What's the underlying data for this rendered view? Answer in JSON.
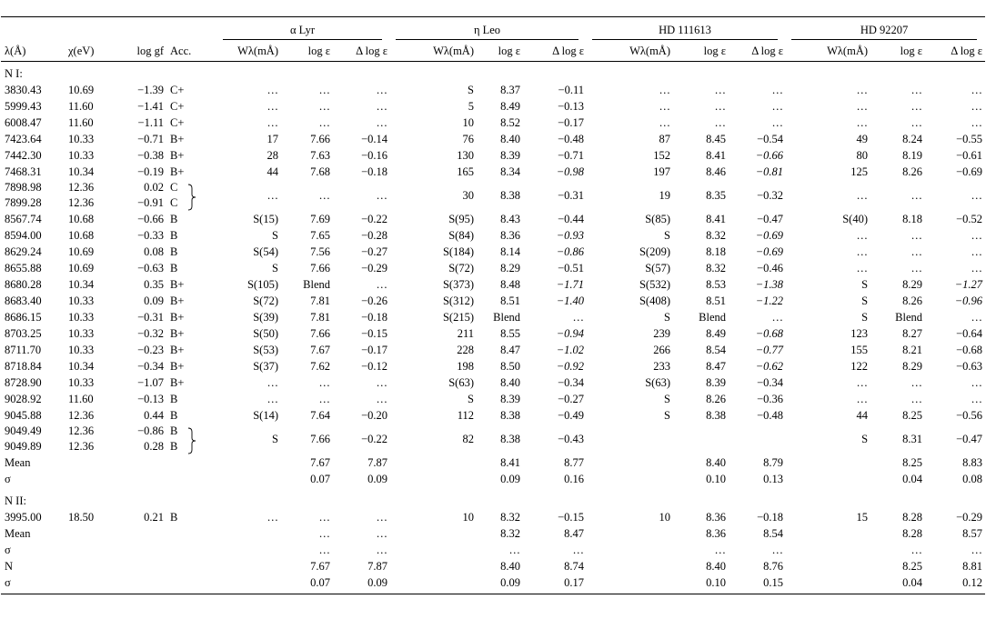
{
  "table": {
    "groups": [
      "α Lyr",
      "η Leo",
      "HD 111613",
      "HD 92207"
    ],
    "columns": [
      "λ(Å)",
      "χ(eV)",
      "log gf",
      "Acc.",
      "Wλ(mÅ)",
      "log ε",
      "Δ log ε",
      "Wλ(mÅ)",
      "log ε",
      "Δ log ε",
      "Wλ(mÅ)",
      "log ε",
      "Δ log ε",
      "Wλ(mÅ)",
      "log ε",
      "Δ log ε"
    ],
    "rows": [
      {
        "section": "N I:"
      },
      {
        "cells": [
          "3830.43",
          "10.69",
          "−1.39",
          "C+",
          "…",
          "…",
          "…",
          "S",
          "8.37",
          "−0.11",
          "…",
          "…",
          "…",
          "…",
          "…",
          "…"
        ]
      },
      {
        "cells": [
          "5999.43",
          "11.60",
          "−1.41",
          "C+",
          "…",
          "…",
          "…",
          "5",
          "8.49",
          "−0.13",
          "…",
          "…",
          "…",
          "…",
          "…",
          "…"
        ]
      },
      {
        "cells": [
          "6008.47",
          "11.60",
          "−1.11",
          "C+",
          "…",
          "…",
          "…",
          "10",
          "8.52",
          "−0.17",
          "…",
          "…",
          "…",
          "…",
          "…",
          "…"
        ]
      },
      {
        "cells": [
          "7423.64",
          "10.33",
          "−0.71",
          "B+",
          "17",
          "7.66",
          "−0.14",
          "76",
          "8.40",
          "−0.48",
          "87",
          "8.45",
          "−0.54",
          "49",
          "8.24",
          "−0.55"
        ]
      },
      {
        "cells": [
          "7442.30",
          "10.33",
          "−0.38",
          "B+",
          "28",
          "7.63",
          "−0.16",
          "130",
          "8.39",
          "−0.71",
          "152",
          "8.41",
          {
            "text": "−0.66",
            "italic": true
          },
          "80",
          "8.19",
          "−0.61"
        ]
      },
      {
        "cells": [
          "7468.31",
          "10.34",
          "−0.19",
          "B+",
          "44",
          "7.68",
          "−0.18",
          "165",
          "8.34",
          {
            "text": "−0.98",
            "italic": true
          },
          "197",
          "8.46",
          {
            "text": "−0.81",
            "italic": true
          },
          "125",
          "8.26",
          "−0.69"
        ]
      },
      {
        "cells": [
          [
            "7898.98",
            "7899.28"
          ],
          [
            "12.36",
            "12.36"
          ],
          [
            "0.02",
            "−0.91"
          ],
          [
            "C",
            "C"
          ],
          "…",
          "…",
          "…",
          "30",
          "8.38",
          "−0.31",
          "19",
          "8.35",
          "−0.32",
          "…",
          "…",
          "…"
        ]
      },
      {
        "cells": [
          "8567.74",
          "10.68",
          "−0.66",
          "B",
          "S(15)",
          "7.69",
          "−0.22",
          "S(95)",
          "8.43",
          "−0.44",
          "S(85)",
          "8.41",
          "−0.47",
          "S(40)",
          "8.18",
          "−0.52"
        ]
      },
      {
        "cells": [
          "8594.00",
          "10.68",
          "−0.33",
          "B",
          "S",
          "7.65",
          "−0.28",
          "S(84)",
          "8.36",
          {
            "text": "−0.93",
            "italic": true
          },
          "S",
          "8.32",
          {
            "text": "−0.69",
            "italic": true
          },
          "…",
          "…",
          "…"
        ]
      },
      {
        "cells": [
          "8629.24",
          "10.69",
          "0.08",
          "B",
          "S(54)",
          "7.56",
          "−0.27",
          "S(184)",
          "8.14",
          {
            "text": "−0.86",
            "italic": true
          },
          "S(209)",
          "8.18",
          {
            "text": "−0.69",
            "italic": true
          },
          "…",
          "…",
          "…"
        ]
      },
      {
        "cells": [
          "8655.88",
          "10.69",
          "−0.63",
          "B",
          "S",
          "7.66",
          "−0.29",
          "S(72)",
          "8.29",
          "−0.51",
          "S(57)",
          "8.32",
          "−0.46",
          "…",
          "…",
          "…"
        ]
      },
      {
        "cells": [
          "8680.28",
          "10.34",
          "0.35",
          "B+",
          "S(105)",
          "Blend",
          "…",
          "S(373)",
          "8.48",
          {
            "text": "−1.71",
            "italic": true
          },
          "S(532)",
          "8.53",
          {
            "text": "−1.38",
            "italic": true
          },
          "S",
          "8.29",
          {
            "text": "−1.27",
            "italic": true
          }
        ]
      },
      {
        "cells": [
          "8683.40",
          "10.33",
          "0.09",
          "B+",
          "S(72)",
          "7.81",
          "−0.26",
          "S(312)",
          "8.51",
          {
            "text": "−1.40",
            "italic": true
          },
          "S(408)",
          "8.51",
          {
            "text": "−1.22",
            "italic": true
          },
          "S",
          "8.26",
          {
            "text": "−0.96",
            "italic": true
          }
        ]
      },
      {
        "cells": [
          "8686.15",
          "10.33",
          "−0.31",
          "B+",
          "S(39)",
          "7.81",
          "−0.18",
          "S(215)",
          "Blend",
          "…",
          "S",
          "Blend",
          "…",
          "S",
          "Blend",
          "…"
        ]
      },
      {
        "cells": [
          "8703.25",
          "10.33",
          "−0.32",
          "B+",
          "S(50)",
          "7.66",
          "−0.15",
          "211",
          "8.55",
          {
            "text": "−0.94",
            "italic": true
          },
          "239",
          "8.49",
          {
            "text": "−0.68",
            "italic": true
          },
          "123",
          "8.27",
          "−0.64"
        ]
      },
      {
        "cells": [
          "8711.70",
          "10.33",
          "−0.23",
          "B+",
          "S(53)",
          "7.67",
          "−0.17",
          "228",
          "8.47",
          {
            "text": "−1.02",
            "italic": true
          },
          "266",
          "8.54",
          {
            "text": "−0.77",
            "italic": true
          },
          "155",
          "8.21",
          "−0.68"
        ]
      },
      {
        "cells": [
          "8718.84",
          "10.34",
          "−0.34",
          "B+",
          "S(37)",
          "7.62",
          "−0.12",
          "198",
          "8.50",
          {
            "text": "−0.92",
            "italic": true
          },
          "233",
          "8.47",
          {
            "text": "−0.62",
            "italic": true
          },
          "122",
          "8.29",
          "−0.63"
        ]
      },
      {
        "cells": [
          "8728.90",
          "10.33",
          "−1.07",
          "B+",
          "…",
          "…",
          "…",
          "S(63)",
          "8.40",
          "−0.34",
          "S(63)",
          "8.39",
          "−0.34",
          "…",
          "…",
          "…"
        ]
      },
      {
        "cells": [
          "9028.92",
          "11.60",
          "−0.13",
          "B",
          "…",
          "…",
          "…",
          "S",
          "8.39",
          "−0.27",
          "S",
          "8.26",
          "−0.36",
          "…",
          "…",
          "…"
        ]
      },
      {
        "cells": [
          "9045.88",
          "12.36",
          "0.44",
          "B",
          "S(14)",
          "7.64",
          "−0.20",
          "112",
          "8.38",
          "−0.49",
          "S",
          "8.38",
          "−0.48",
          "44",
          "8.25",
          "−0.56"
        ]
      },
      {
        "cells": [
          [
            "9049.49",
            "9049.89"
          ],
          [
            "12.36",
            "12.36"
          ],
          [
            "−0.86",
            "0.28"
          ],
          [
            "B",
            "B"
          ],
          "S",
          "7.66",
          "−0.22",
          "82",
          "8.38",
          "−0.43",
          null,
          null,
          null,
          "S",
          "8.31",
          "−0.47"
        ]
      },
      {
        "cells": [
          "Mean",
          null,
          null,
          null,
          null,
          "7.67",
          "7.87",
          null,
          "8.41",
          "8.77",
          null,
          "8.40",
          "8.79",
          null,
          "8.25",
          "8.83"
        ]
      },
      {
        "cells": [
          "σ",
          null,
          null,
          null,
          null,
          "0.07",
          "0.09",
          null,
          "0.09",
          "0.16",
          null,
          "0.10",
          "0.13",
          null,
          "0.04",
          "0.08"
        ]
      },
      {
        "section": "N II:"
      },
      {
        "cells": [
          "3995.00",
          "18.50",
          "0.21",
          "B",
          "…",
          "…",
          "…",
          "10",
          "8.32",
          "−0.15",
          "10",
          "8.36",
          "−0.18",
          "15",
          "8.28",
          "−0.29"
        ]
      },
      {
        "cells": [
          "Mean",
          null,
          null,
          null,
          null,
          "…",
          "…",
          null,
          "8.32",
          "8.47",
          null,
          "8.36",
          "8.54",
          null,
          "8.28",
          "8.57"
        ]
      },
      {
        "cells": [
          "σ",
          null,
          null,
          null,
          null,
          "…",
          "…",
          null,
          "…",
          "…",
          null,
          "…",
          "…",
          null,
          "…",
          "…"
        ]
      },
      {
        "cells": [
          "N",
          null,
          null,
          null,
          null,
          "7.67",
          "7.87",
          null,
          "8.40",
          "8.74",
          null,
          "8.40",
          "8.76",
          null,
          "8.25",
          "8.81"
        ]
      },
      {
        "cells": [
          "σ",
          null,
          null,
          null,
          null,
          "0.07",
          "0.09",
          null,
          "0.09",
          "0.17",
          null,
          "0.10",
          "0.15",
          null,
          "0.04",
          "0.12"
        ]
      }
    ]
  }
}
